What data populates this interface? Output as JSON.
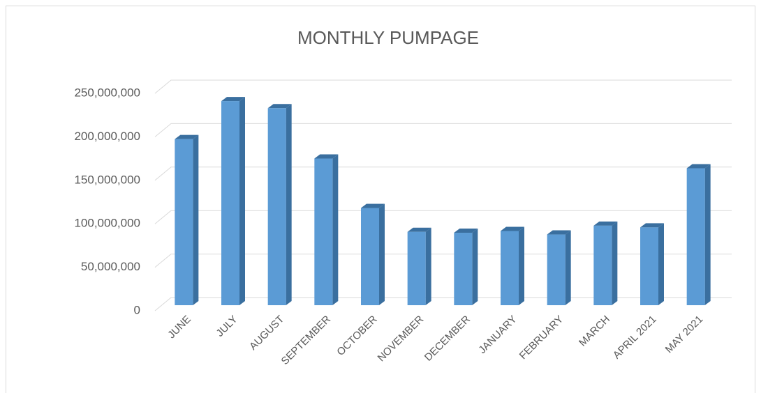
{
  "chart_data": {
    "type": "bar3d",
    "title": "MONTHLY PUMPAGE",
    "categories": [
      "JUNE",
      "JULY",
      "AUGUST",
      "SEPTEMBER",
      "OCTOBER",
      "NOVEMBER",
      "DECEMBER",
      "JANUARY",
      "FEBRUARY",
      "MARCH",
      "APRIL 2021",
      "MAY 2021"
    ],
    "values": [
      188000000,
      231000000,
      223000000,
      166000000,
      110000000,
      83000000,
      82000000,
      84000000,
      80000000,
      90000000,
      88000000,
      155000000
    ],
    "color": "#5b9bd5",
    "side_color": "#3a6f9f",
    "ylim": [
      0,
      250000000
    ],
    "yticks": [
      0,
      {
        "value": 50000000,
        "label": "50,000,000"
      },
      {
        "value": 100000000,
        "label": "100,000,000"
      },
      {
        "value": 150000000,
        "label": "150,000,000"
      },
      {
        "value": 200000000,
        "label": "200,000,000"
      },
      {
        "value": 250000000,
        "label": "250,000,000"
      }
    ],
    "grid": true
  }
}
